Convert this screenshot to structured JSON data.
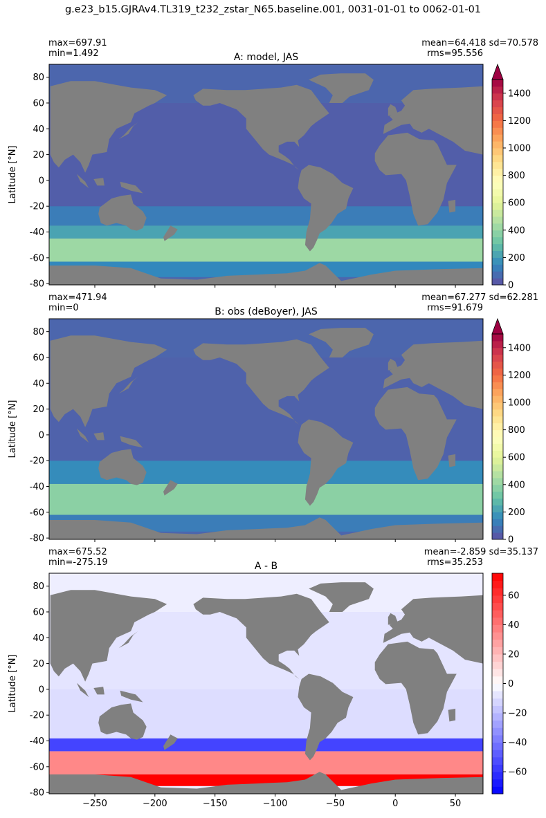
{
  "figure_title": "g.e23_b15.GJRAv4.TL319_t232_zstar_N65.baseline.001, 0031-01-01 to 0062-01-01",
  "colors": {
    "land": "#808080",
    "frame": "#000000"
  },
  "chart_data": [
    {
      "type": "heatmap",
      "title": "A: model, JAS",
      "ylabel": "Latitude [°N]",
      "xlim": [
        -288,
        73
      ],
      "ylim": [
        -81,
        90
      ],
      "yticks": [
        80,
        60,
        40,
        20,
        0,
        -20,
        -40,
        -60,
        -80
      ],
      "xticks": [
        -250,
        -200,
        -150,
        -100,
        -50,
        0,
        50
      ],
      "show_xticklabels": false,
      "stats": {
        "max": "max=697.91",
        "min": "min=1.492",
        "mean_sd": "mean=64.418 sd=70.578",
        "rms": "rms=95.556"
      },
      "colorbar": {
        "colormap": "Spectral_r",
        "range": [
          0,
          1500
        ],
        "extend": "max",
        "ticks": [
          1400,
          1200,
          1000,
          800,
          600,
          400,
          200,
          0
        ],
        "stops": [
          "#5e4fa2",
          "#3288bd",
          "#66c2a5",
          "#abdda4",
          "#e6f598",
          "#ffffbf",
          "#fee08b",
          "#fdae61",
          "#f46d43",
          "#d53e4f",
          "#9e0142"
        ]
      },
      "field": [
        {
          "lat": [
            -75,
            -63
          ],
          "value": 150
        },
        {
          "lat": [
            -63,
            -45
          ],
          "value": 420
        },
        {
          "lat": [
            -45,
            -35
          ],
          "value": 220
        },
        {
          "lat": [
            -35,
            -20
          ],
          "value": 120
        },
        {
          "lat": [
            -20,
            60
          ],
          "value": 40
        },
        {
          "lat": [
            60,
            90
          ],
          "value": 60
        }
      ]
    },
    {
      "type": "heatmap",
      "title": "B: obs (deBoyer), JAS",
      "ylabel": "Latitude [°N]",
      "xlim": [
        -288,
        73
      ],
      "ylim": [
        -81,
        90
      ],
      "yticks": [
        80,
        60,
        40,
        20,
        0,
        -20,
        -40,
        -60,
        -80
      ],
      "xticks": [
        -250,
        -200,
        -150,
        -100,
        -50,
        0,
        50
      ],
      "show_xticklabels": false,
      "stats": {
        "max": "max=471.94",
        "min": "min=0",
        "mean_sd": "mean=67.277 sd=62.281",
        "rms": "rms=91.679"
      },
      "colorbar": {
        "colormap": "Spectral_r",
        "range": [
          0,
          1500
        ],
        "extend": "max",
        "ticks": [
          1400,
          1200,
          1000,
          800,
          600,
          400,
          200,
          0
        ],
        "stops": [
          "#5e4fa2",
          "#3288bd",
          "#66c2a5",
          "#abdda4",
          "#e6f598",
          "#ffffbf",
          "#fee08b",
          "#fdae61",
          "#f46d43",
          "#d53e4f",
          "#9e0142"
        ]
      },
      "field": [
        {
          "lat": [
            -75,
            -62
          ],
          "value": 120
        },
        {
          "lat": [
            -62,
            -38
          ],
          "value": 380
        },
        {
          "lat": [
            -38,
            -20
          ],
          "value": 160
        },
        {
          "lat": [
            -20,
            60
          ],
          "value": 50
        },
        {
          "lat": [
            60,
            90
          ],
          "value": 60
        }
      ]
    },
    {
      "type": "heatmap",
      "title": "A - B",
      "ylabel": "Latitude [°N]",
      "xlim": [
        -288,
        73
      ],
      "ylim": [
        -81,
        90
      ],
      "yticks": [
        80,
        60,
        40,
        20,
        0,
        -20,
        -40,
        -60,
        -80
      ],
      "xticks": [
        -250,
        -200,
        -150,
        -100,
        -50,
        0,
        50
      ],
      "show_xticklabels": true,
      "stats": {
        "max": "max=675.52",
        "min": "min=-275.19",
        "mean_sd": "mean=-2.859 sd=35.137",
        "rms": "rms=35.253"
      },
      "colorbar": {
        "colormap": "bwr",
        "range": [
          -75,
          75
        ],
        "extend": "neither",
        "ticks": [
          60,
          40,
          20,
          0,
          -20,
          -40,
          -60
        ],
        "stops": [
          "#0000ff",
          "#ffffff",
          "#ff0000"
        ]
      },
      "field": [
        {
          "lat": [
            -75,
            -66
          ],
          "value": 75
        },
        {
          "lat": [
            -66,
            -48
          ],
          "value": 35
        },
        {
          "lat": [
            -48,
            -38
          ],
          "value": -55
        },
        {
          "lat": [
            -38,
            0
          ],
          "value": -10
        },
        {
          "lat": [
            0,
            60
          ],
          "value": -8
        },
        {
          "lat": [
            60,
            90
          ],
          "value": -5
        }
      ]
    }
  ]
}
